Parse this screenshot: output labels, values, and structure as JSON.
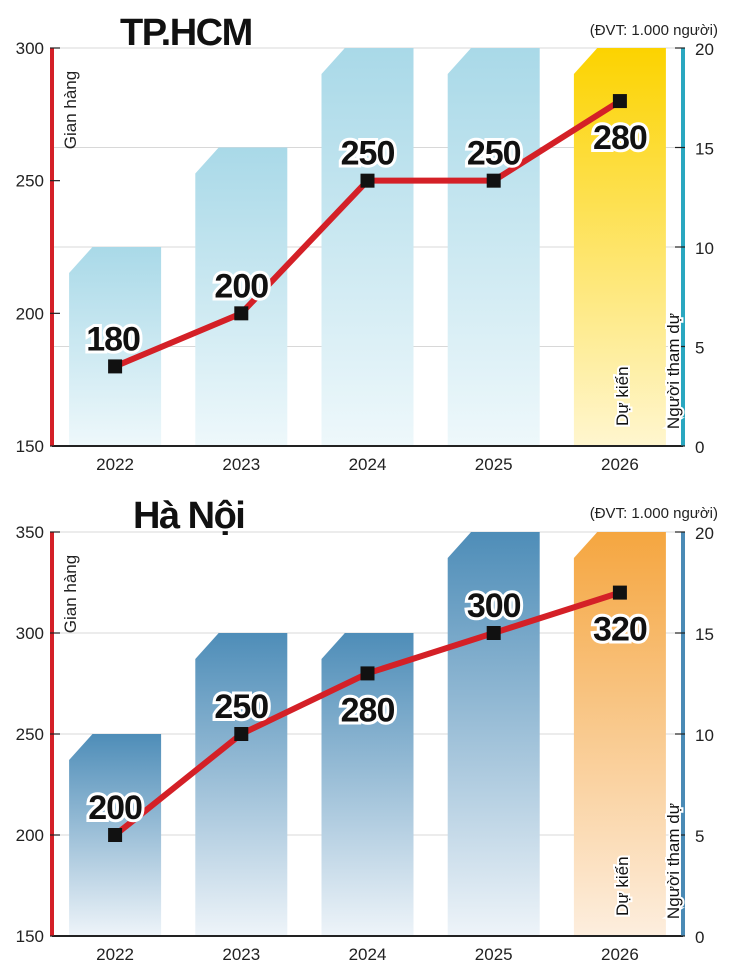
{
  "chart_data": [
    {
      "type": "bar+line",
      "title": "TP.HCM",
      "unit_note": "(ĐVT: 1.000 người)",
      "categories": [
        "2022",
        "2023",
        "2024",
        "2025",
        "2026"
      ],
      "left_axis": {
        "label": "Gian hàng",
        "range": [
          150,
          300
        ],
        "ticks": [
          150,
          200,
          250,
          300
        ],
        "color": "#d42027"
      },
      "right_axis": {
        "label": "Người tham dự",
        "range": [
          0,
          20
        ],
        "ticks": [
          0,
          5,
          10,
          15,
          20
        ],
        "color": "#2aa7c0"
      },
      "bars": {
        "name": "Người tham dự",
        "values": [
          10,
          15,
          20,
          20,
          20
        ],
        "color": "#a9d9e8",
        "forecast_color": "#fcd300"
      },
      "line": {
        "name": "Gian hàng",
        "values": [
          180,
          200,
          250,
          250,
          280
        ],
        "labels": [
          "180",
          "200",
          "250",
          "250",
          "280"
        ],
        "color": "#d42027"
      },
      "forecast_label": "Dự kiến",
      "grid": true
    },
    {
      "type": "bar+line",
      "title": "Hà Nội",
      "unit_note": "(ĐVT: 1.000 người)",
      "categories": [
        "2022",
        "2023",
        "2024",
        "2025",
        "2026"
      ],
      "left_axis": {
        "label": "Gian hàng",
        "range": [
          150,
          350
        ],
        "ticks": [
          150,
          200,
          250,
          300,
          350
        ],
        "color": "#d42027"
      },
      "right_axis": {
        "label": "Người tham dự",
        "range": [
          0,
          20
        ],
        "ticks": [
          0,
          5,
          10,
          15,
          20
        ],
        "color": "#4a8ab5"
      },
      "bars": {
        "name": "Người tham dự",
        "values": [
          10,
          15,
          15,
          20,
          20
        ],
        "color": "#4e8db8",
        "forecast_color": "#f5a640"
      },
      "line": {
        "name": "Gian hàng",
        "values": [
          200,
          250,
          280,
          300,
          320
        ],
        "labels": [
          "200",
          "250",
          "280",
          "300",
          "320"
        ],
        "color": "#d42027"
      },
      "forecast_label": "Dự kiến",
      "grid": true
    }
  ]
}
